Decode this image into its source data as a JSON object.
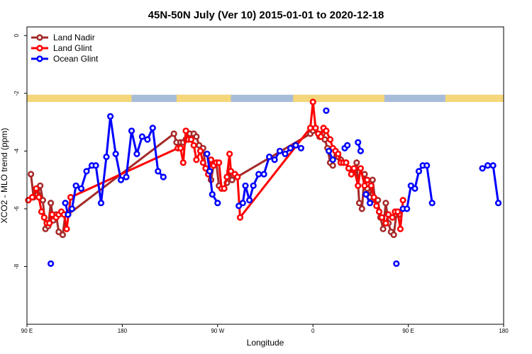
{
  "chart_data": {
    "type": "line",
    "title": "45N-50N July (Ver 10)   2015-01-01 to 2020-12-18",
    "xlabel": "Longitude",
    "ylabel": "XCO2 - MLO trend (ppm)",
    "xlim": [
      -90,
      270
    ],
    "ylim": [
      -10,
      0.3
    ],
    "x_ticks": [
      {
        "value": -90,
        "label": "90 E"
      },
      {
        "value": -18,
        "label": "180"
      },
      {
        "value": 54,
        "label": "90 W"
      },
      {
        "value": 126,
        "label": "0"
      },
      {
        "value": 198,
        "label": "90 E"
      },
      {
        "value": 270,
        "label": "180"
      }
    ],
    "y_ticks": [
      {
        "value": 0,
        "label": "0"
      },
      {
        "value": -2,
        "label": "-2"
      },
      {
        "value": -4,
        "label": "-4"
      },
      {
        "value": -6,
        "label": "-6"
      },
      {
        "value": -8,
        "label": "-8"
      }
    ],
    "legend_position": "top-left",
    "land_mask_band": {
      "y_range": [
        -2.3,
        -2.05
      ],
      "land_color": "#f5d67a",
      "ocean_color": "#a7bcd9",
      "land_segments": [
        [
          -90,
          -11
        ],
        [
          23,
          38
        ],
        [
          38,
          64
        ],
        [
          111,
          180
        ],
        [
          226,
          270
        ]
      ]
    },
    "series": [
      {
        "name": "Land Nadir",
        "color": "#a52a2a",
        "points": [
          [
            -87,
            -4.8
          ],
          [
            -85,
            -5.6
          ],
          [
            -82,
            -5.5
          ],
          [
            -80,
            -5.2
          ],
          [
            -78,
            -5.7
          ],
          [
            -76,
            -6.7
          ],
          [
            -74,
            -6.6
          ],
          [
            -72,
            -5.8
          ],
          [
            -70,
            -6.4
          ],
          [
            -68,
            -6.2
          ],
          [
            -66,
            -6.8
          ],
          [
            -63,
            -6.9
          ],
          [
            -61,
            -6.2
          ],
          [
            -59,
            -6.2
          ],
          [
            21,
            -3.4
          ],
          [
            23,
            -3.7
          ],
          [
            26,
            -3.7
          ],
          [
            28,
            -3.7
          ],
          [
            30,
            -3.6
          ],
          [
            33,
            -3.4
          ],
          [
            36,
            -3.4
          ],
          [
            38,
            -3.5
          ],
          [
            40,
            -3.8
          ],
          [
            43,
            -3.9
          ],
          [
            45,
            -4.6
          ],
          [
            47,
            -4.8
          ],
          [
            49,
            -5.0
          ],
          [
            51,
            -4.5
          ],
          [
            53,
            -4.4
          ],
          [
            55,
            -5.2
          ],
          [
            57,
            -5.3
          ],
          [
            59,
            -5.3
          ],
          [
            61,
            -5.1
          ],
          [
            63,
            -4.7
          ],
          [
            65,
            -5.0
          ],
          [
            124,
            -3.4
          ],
          [
            126,
            -3.3
          ],
          [
            128,
            -3.2
          ],
          [
            131,
            -3.5
          ],
          [
            133,
            -3.4
          ],
          [
            135,
            -3.6
          ],
          [
            137,
            -3.9
          ],
          [
            139,
            -4.4
          ],
          [
            141,
            -4.5
          ],
          [
            143,
            -4.0
          ],
          [
            145,
            -4.2
          ],
          [
            147,
            -4.3
          ],
          [
            149,
            -4.4
          ],
          [
            151,
            -4.4
          ],
          [
            153,
            -4.6
          ],
          [
            155,
            -4.8
          ],
          [
            157,
            -4.7
          ],
          [
            159,
            -4.4
          ],
          [
            161,
            -5.8
          ],
          [
            163,
            -6.0
          ],
          [
            165,
            -4.8
          ],
          [
            167,
            -5.3
          ],
          [
            169,
            -5.6
          ],
          [
            171,
            -5.0
          ],
          [
            173,
            -5.7
          ],
          [
            175,
            -5.7
          ],
          [
            177,
            -6.3
          ],
          [
            179,
            -6.7
          ],
          [
            181,
            -5.8
          ],
          [
            183,
            -6.5
          ],
          [
            185,
            -6.8
          ],
          [
            187,
            -6.9
          ],
          [
            189,
            -6.2
          ],
          [
            191,
            -6.2
          ]
        ]
      },
      {
        "name": "Land Glint",
        "color": "#ff0000",
        "points": [
          [
            -89,
            -5.7
          ],
          [
            -86,
            -5.6
          ],
          [
            -83,
            -5.3
          ],
          [
            -81,
            -5.6
          ],
          [
            -79,
            -6.1
          ],
          [
            -77,
            -6.3
          ],
          [
            -75,
            -6.5
          ],
          [
            -73,
            -6.5
          ],
          [
            -71,
            -6.2
          ],
          [
            -68,
            -6.3
          ],
          [
            -66,
            -6.2
          ],
          [
            -64,
            -6.1
          ],
          [
            -62,
            -6.2
          ],
          [
            -60,
            -6.7
          ],
          [
            -57,
            -5.6
          ],
          [
            24,
            -3.9
          ],
          [
            26,
            -3.9
          ],
          [
            28,
            -4.4
          ],
          [
            30,
            -3.3
          ],
          [
            32,
            -3.6
          ],
          [
            34,
            -3.6
          ],
          [
            36,
            -3.8
          ],
          [
            38,
            -4.3
          ],
          [
            41,
            -4.0
          ],
          [
            43,
            -4.4
          ],
          [
            45,
            -4.6
          ],
          [
            47,
            -4.8
          ],
          [
            49,
            -4.3
          ],
          [
            51,
            -4.5
          ],
          [
            53,
            -4.4
          ],
          [
            55,
            -4.4
          ],
          [
            57,
            -5.3
          ],
          [
            59,
            -5.3
          ],
          [
            61,
            -4.9
          ],
          [
            63,
            -4.1
          ],
          [
            64,
            -4.7
          ],
          [
            67,
            -4.8
          ],
          [
            69,
            -4.9
          ],
          [
            71,
            -6.3
          ],
          [
            124,
            -3.2
          ],
          [
            126,
            -2.3
          ],
          [
            128,
            -3.2
          ],
          [
            130,
            -3.4
          ],
          [
            132,
            -3.5
          ],
          [
            134,
            -3.2
          ],
          [
            136,
            -3.3
          ],
          [
            139,
            -3.6
          ],
          [
            141,
            -3.9
          ],
          [
            143,
            -4.0
          ],
          [
            145,
            -4.1
          ],
          [
            147,
            -4.4
          ],
          [
            149,
            -4.4
          ],
          [
            151,
            -4.4
          ],
          [
            153,
            -4.6
          ],
          [
            155,
            -4.8
          ],
          [
            157,
            -4.6
          ],
          [
            160,
            -5.2
          ],
          [
            162,
            -4.6
          ],
          [
            165,
            -5.2
          ],
          [
            167,
            -5.0
          ],
          [
            170,
            -5.2
          ],
          [
            172,
            -5.6
          ],
          [
            174,
            -5.9
          ],
          [
            176,
            -6.1
          ],
          [
            178,
            -6.3
          ],
          [
            181,
            -6.5
          ],
          [
            183,
            -6.2
          ],
          [
            186,
            -6.3
          ],
          [
            188,
            -6.1
          ],
          [
            190,
            -6.1
          ],
          [
            192,
            -6.7
          ],
          [
            194,
            -5.7
          ]
        ]
      },
      {
        "name": "Ocean Glint",
        "color": "#0000ff",
        "segments": [
          [
            [
              -61,
              -5.8
            ],
            [
              -59,
              -6.2
            ],
            [
              -56,
              -6.0
            ],
            [
              -53,
              -5.2
            ],
            [
              -49,
              -5.3
            ],
            [
              -45,
              -4.7
            ],
            [
              -41,
              -4.5
            ],
            [
              -38,
              -4.5
            ],
            [
              -34,
              -5.8
            ],
            [
              -30,
              -4.2
            ],
            [
              -27,
              -2.8
            ],
            [
              -23,
              -4.1
            ],
            [
              -19,
              -5.0
            ],
            [
              -15,
              -4.9
            ],
            [
              -11,
              -3.3
            ],
            [
              -7,
              -4.1
            ],
            [
              -3,
              -3.5
            ],
            [
              1,
              -3.6
            ],
            [
              5,
              -3.2
            ],
            [
              9,
              -4.7
            ],
            [
              13,
              -4.9
            ]
          ],
          [
            [
              46,
              -4.1
            ],
            [
              48,
              -4.7
            ],
            [
              50,
              -5.5
            ],
            [
              54,
              -5.8
            ]
          ],
          [
            [
              70,
              -5.9
            ],
            [
              73,
              -5.8
            ],
            [
              75,
              -5.2
            ],
            [
              78,
              -5.7
            ],
            [
              81,
              -5.2
            ],
            [
              85,
              -4.8
            ],
            [
              89,
              -4.8
            ],
            [
              93,
              -4.2
            ],
            [
              97,
              -4.3
            ],
            [
              101,
              -4.0
            ],
            [
              105,
              -4.1
            ],
            [
              109,
              -3.9
            ],
            [
              113,
              -3.8
            ],
            [
              117,
              -3.9
            ]
          ],
          [
            [
              138,
              -4.0
            ],
            [
              141,
              -4.3
            ]
          ],
          [
            [
              160,
              -3.7
            ],
            [
              162,
              -4.0
            ]
          ],
          [
            [
              166,
              -5.5
            ],
            [
              169,
              -5.8
            ]
          ],
          [
            [
              254,
              -4.6
            ],
            [
              258,
              -4.5
            ],
            [
              262,
              -4.5
            ],
            [
              266,
              -5.8
            ]
          ],
          [
            [
              194,
              -6.0
            ],
            [
              197,
              -6.0
            ],
            [
              200,
              -5.2
            ],
            [
              203,
              -5.3
            ],
            [
              206,
              -4.7
            ],
            [
              209,
              -4.5
            ],
            [
              212,
              -4.5
            ],
            [
              216,
              -5.8
            ]
          ]
        ],
        "points": [
          [
            -72,
            -7.9
          ],
          [
            136,
            -2.6
          ],
          [
            189,
            -7.9
          ],
          [
            150,
            -3.9
          ],
          [
            152,
            -3.8
          ]
        ]
      }
    ]
  }
}
